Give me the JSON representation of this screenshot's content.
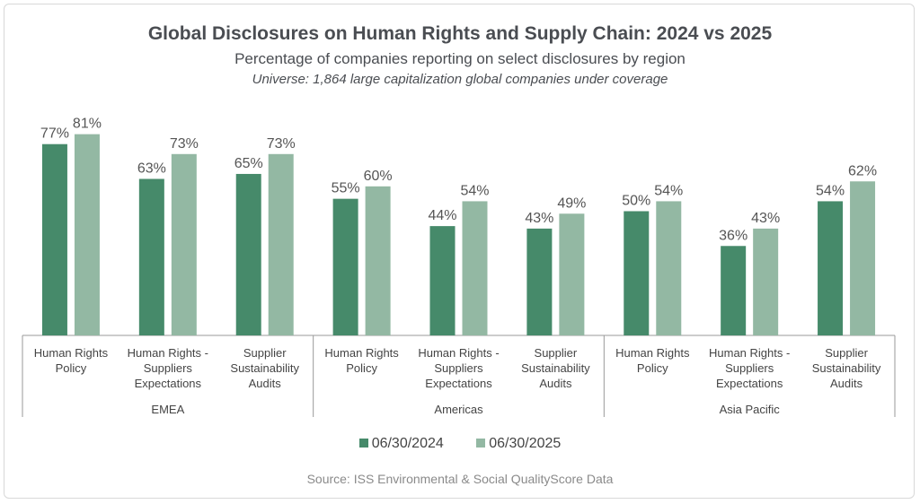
{
  "chart_data": {
    "type": "bar",
    "title": "Global Disclosures on Human Rights and Supply Chain: 2024 vs 2025",
    "subtitle": "Percentage of companies reporting on select disclosures by region",
    "note": "Universe: 1,864 large capitalization global companies under coverage",
    "source": "Source: ISS Environmental & Social QualityScore Data",
    "groups": [
      "EMEA",
      "Americas",
      "Asia Pacific"
    ],
    "categories": [
      [
        "Human Rights",
        "Policy"
      ],
      [
        "Human Rights -",
        "Suppliers",
        "Expectations"
      ],
      [
        "Supplier",
        "Sustainability",
        "Audits"
      ]
    ],
    "series": [
      {
        "name": "06/30/2024",
        "color": "#468a6a",
        "values": [
          [
            77,
            63,
            65
          ],
          [
            55,
            44,
            43
          ],
          [
            50,
            36,
            54
          ]
        ]
      },
      {
        "name": "06/30/2025",
        "color": "#93b8a3",
        "values": [
          [
            81,
            73,
            73
          ],
          [
            60,
            54,
            49
          ],
          [
            54,
            43,
            62
          ]
        ]
      }
    ],
    "value_format": "%",
    "ylim": [
      0,
      100
    ],
    "grid": false,
    "legend": "bottom"
  }
}
